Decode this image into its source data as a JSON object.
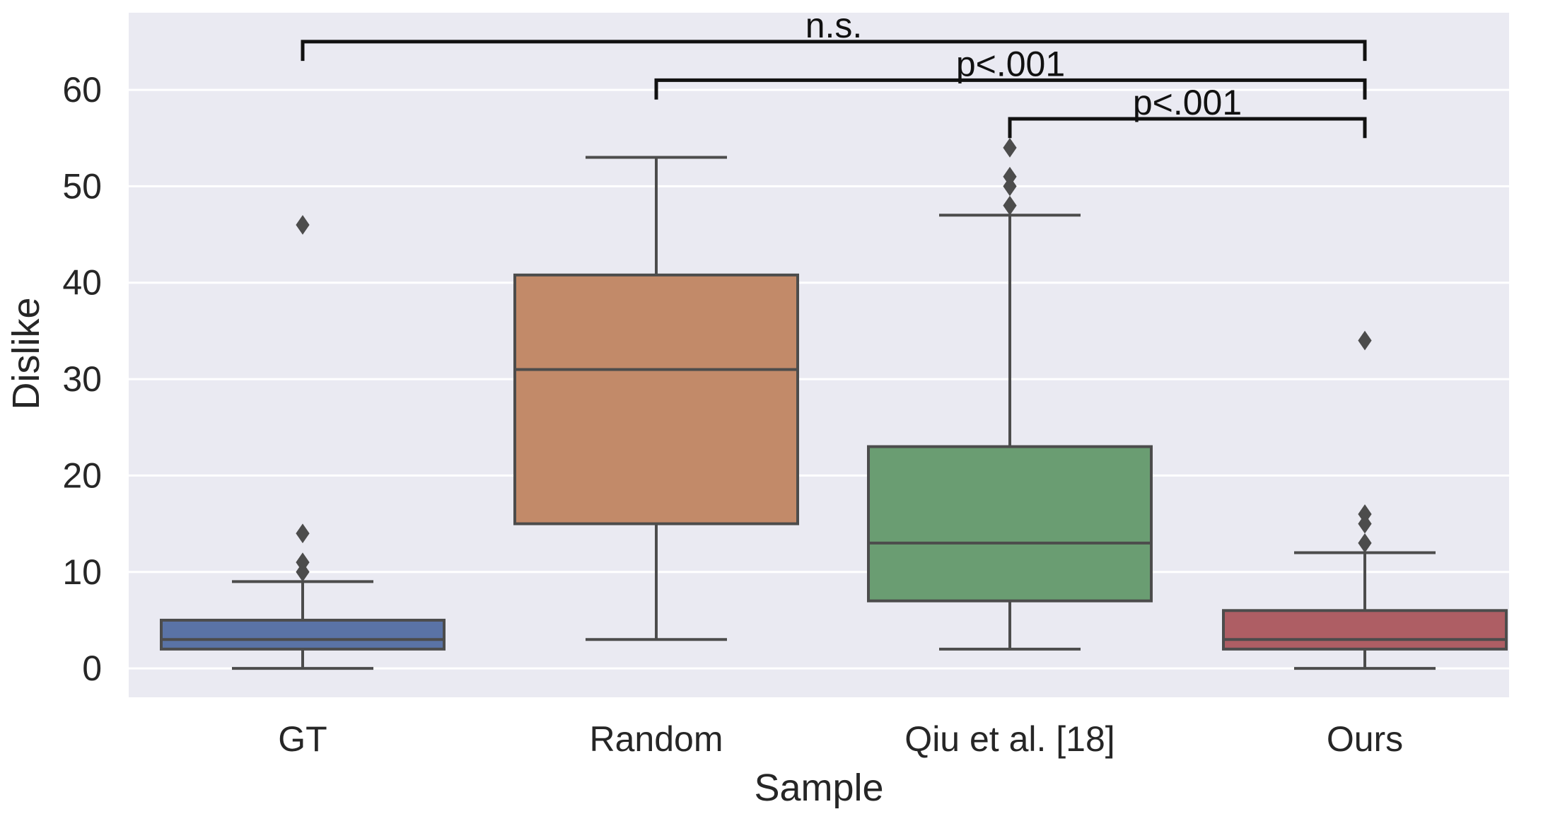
{
  "chart_data": {
    "type": "box",
    "xlabel": "Sample",
    "ylabel": "Dislike",
    "ylim": [
      -3,
      68
    ],
    "yticks": [
      0,
      10,
      20,
      30,
      40,
      50,
      60
    ],
    "grid": true,
    "categories": [
      "GT",
      "Random",
      "Qiu et al. [18]",
      "Ours"
    ],
    "boxes": [
      {
        "category": "GT",
        "min": 0,
        "q1": 2,
        "median": 3,
        "q3": 5,
        "max": 9,
        "outliers": [
          10,
          11,
          14,
          46
        ],
        "color": "#5a73a6"
      },
      {
        "category": "Random",
        "min": 3,
        "q1": 15,
        "median": 31,
        "q3": 40.8,
        "max": 53,
        "outliers": [],
        "color": "#c28a69"
      },
      {
        "category": "Qiu et al. [18]",
        "min": 2,
        "q1": 7,
        "median": 13,
        "q3": 23,
        "max": 47,
        "outliers": [
          48,
          50,
          51,
          54
        ],
        "color": "#6a9d72"
      },
      {
        "category": "Ours",
        "min": 0,
        "q1": 2,
        "median": 3,
        "q3": 6,
        "max": 12,
        "outliers": [
          13,
          15,
          16,
          34
        ],
        "color": "#ae5e64"
      }
    ],
    "annotations": [
      {
        "from": "GT",
        "to": "Ours",
        "label": "n.s.",
        "bar_y": 65,
        "left_tip_y": 63,
        "right_tip_y": 63
      },
      {
        "from": "Random",
        "to": "Ours",
        "label": "p<.001",
        "bar_y": 61,
        "left_tip_y": 59,
        "right_tip_y": 59
      },
      {
        "from": "Qiu et al. [18]",
        "to": "Ours",
        "label": "p<.001",
        "bar_y": 57,
        "left_tip_y": 55,
        "right_tip_y": 55
      }
    ],
    "colors": {
      "plot_background": "#eaeaf2",
      "grid": "#ffffff",
      "lines": "#4c4c4c",
      "annotation": "#111111"
    }
  }
}
